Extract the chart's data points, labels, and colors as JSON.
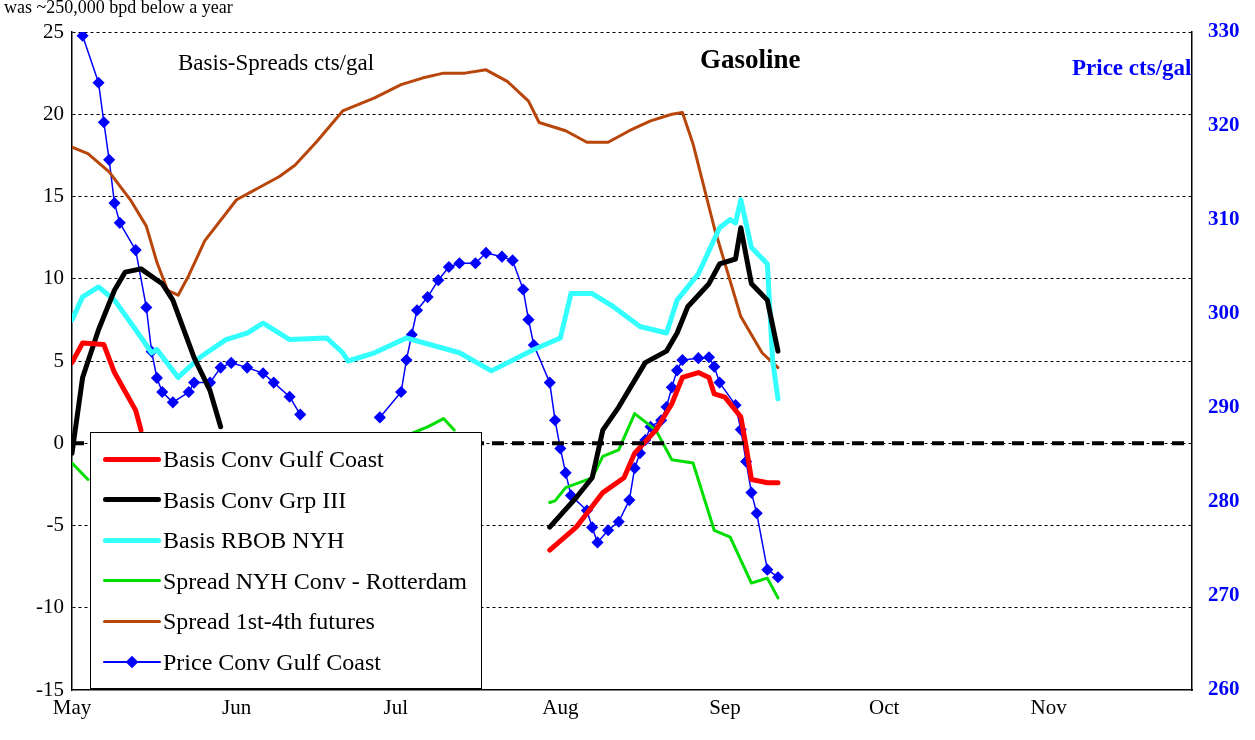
{
  "chart_data": {
    "type": "line",
    "title": "Gasoline",
    "ylabel": "Basis-Spreads cts/gal",
    "y2label": "Price cts/gal",
    "annotations": [
      "was ~250,000 bpd below a year"
    ],
    "xlim": [
      "--05-01",
      "--11-28"
    ],
    "xticks": [
      {
        "value": "--05-01",
        "label": "May"
      },
      {
        "value": "--06-01",
        "label": "Jun"
      },
      {
        "value": "--07-01",
        "label": "Jul"
      },
      {
        "value": "--08-01",
        "label": "Aug"
      },
      {
        "value": "--09-01",
        "label": "Sep"
      },
      {
        "value": "--10-01",
        "label": "Oct"
      },
      {
        "value": "--11-01",
        "label": "Nov"
      }
    ],
    "ylim": [
      -15,
      25
    ],
    "yticks": [
      -15,
      -10,
      -5,
      0,
      5,
      10,
      15,
      20,
      25
    ],
    "y2lim": [
      260,
      330
    ],
    "y2ticks": [
      260,
      270,
      280,
      290,
      300,
      310,
      320,
      330
    ],
    "grid": "y",
    "legend": "bottom left",
    "ref_lines": [
      {
        "axis": "y",
        "value": 0,
        "color": "#000000",
        "line_style": "dashed"
      }
    ],
    "series": [
      {
        "name": "Basis Conv Gulf Coast",
        "color": "#ff0000",
        "marker": "none",
        "x": [
          "--05-01",
          "--05-03",
          "--05-07",
          "--05-09",
          "--05-13",
          "--05-14",
          "--06-20",
          "--07-30",
          "--08-04",
          "--08-09",
          "--08-13",
          "--08-15",
          "--08-19",
          "--08-22",
          "--08-24",
          "--08-27",
          "--08-29",
          "--08-30",
          "--09-01",
          "--09-04",
          "--09-05",
          "--09-06",
          "--09-09",
          "--09-11"
        ],
        "values": [
          4.9,
          6.1,
          6.0,
          4.3,
          2.0,
          0.8,
          null,
          -6.5,
          -5.1,
          -3.0,
          -2.1,
          -0.6,
          0.8,
          2.4,
          4.0,
          4.3,
          4.0,
          3.0,
          2.8,
          1.6,
          -0.2,
          -2.2,
          -2.4,
          -2.4
        ]
      },
      {
        "name": "Basis Conv Grp III",
        "color": "#000000",
        "marker": "none",
        "x": [
          "--05-01",
          "--05-03",
          "--05-06",
          "--05-09",
          "--05-11",
          "--05-14",
          "--05-18",
          "--05-20",
          "--05-24",
          "--05-27",
          "--05-29",
          "--05-30",
          "--06-20",
          "--07-30",
          "--08-04",
          "--08-07",
          "--08-09",
          "--08-12",
          "--08-17",
          "--08-21",
          "--08-23",
          "--08-25",
          "--08-29",
          "--08-31",
          "--09-03",
          "--09-04",
          "--09-06",
          "--09-09",
          "--09-11"
        ],
        "values": [
          -0.6,
          4.0,
          6.9,
          9.3,
          10.4,
          10.6,
          9.7,
          8.7,
          5.2,
          3.2,
          1.0,
          null,
          null,
          -5.1,
          -3.3,
          -2.1,
          0.8,
          2.2,
          4.9,
          5.6,
          6.7,
          8.3,
          9.7,
          10.9,
          11.2,
          13.1,
          9.7,
          8.7,
          5.6
        ]
      },
      {
        "name": "Basis RBOB NYH",
        "color": "#33ffff",
        "marker": "none",
        "x": [
          "--05-01",
          "--05-03",
          "--05-06",
          "--05-09",
          "--05-13",
          "--05-16",
          "--05-17",
          "--05-21",
          "--05-25",
          "--05-30",
          "--06-03",
          "--06-06",
          "--06-11",
          "--06-18",
          "--06-21",
          "--06-22",
          "--06-27",
          "--07-03",
          "--07-13",
          "--07-19",
          "--07-27",
          "--08-01",
          "--08-03",
          "--08-07",
          "--08-11",
          "--08-16",
          "--08-21",
          "--08-23",
          "--08-27",
          "--08-31",
          "--09-02",
          "--09-03",
          "--09-04",
          "--09-06",
          "--09-09",
          "--09-10",
          "--09-11"
        ],
        "values": [
          7.5,
          8.9,
          9.5,
          8.7,
          6.9,
          5.5,
          5.7,
          4.0,
          5.2,
          6.3,
          6.7,
          7.3,
          6.3,
          6.4,
          5.5,
          5.0,
          5.5,
          6.4,
          5.5,
          4.4,
          5.7,
          6.4,
          9.1,
          9.1,
          8.3,
          7.1,
          6.7,
          8.7,
          10.3,
          13.1,
          13.6,
          13.4,
          14.8,
          11.9,
          10.9,
          5.0,
          2.7
        ]
      },
      {
        "name": "Spread NYH Conv - Rotterdam",
        "color": "#00dd00",
        "marker": "none",
        "x": [
          "--05-01",
          "--05-04",
          "--06-20",
          "--07-04",
          "--07-07",
          "--07-10",
          "--07-12",
          "--07-20",
          "--07-30",
          "--07-31",
          "--08-02",
          "--08-07",
          "--08-09",
          "--08-12",
          "--08-15",
          "--08-19",
          "--08-22",
          "--08-26",
          "--08-30",
          "--09-02",
          "--09-06",
          "--09-09",
          "--09-11"
        ],
        "values": [
          -1.2,
          -2.2,
          null,
          0.6,
          1.0,
          1.5,
          0.8,
          null,
          -3.6,
          -3.5,
          -2.7,
          -2.1,
          -0.8,
          -0.4,
          1.8,
          0.8,
          -1.0,
          -1.2,
          -5.3,
          -5.7,
          -8.5,
          -8.2,
          -9.4
        ]
      },
      {
        "name": "Spread 1st-4th futures",
        "color": "#b8460b",
        "marker": "none",
        "x": [
          "--05-01",
          "--05-04",
          "--05-08",
          "--05-12",
          "--05-15",
          "--05-17",
          "--05-19",
          "--05-21",
          "--05-23",
          "--05-26",
          "--06-01",
          "--06-05",
          "--06-09",
          "--06-12",
          "--06-16",
          "--06-21",
          "--06-27",
          "--07-02",
          "--07-06",
          "--07-10",
          "--07-14",
          "--07-18",
          "--07-22",
          "--07-26",
          "--07-28",
          "--08-02",
          "--08-06",
          "--08-10",
          "--08-14",
          "--08-18",
          "--08-22",
          "--08-24",
          "--08-26",
          "--08-30",
          "--09-04",
          "--09-08",
          "--09-11"
        ],
        "values": [
          18.0,
          17.6,
          16.5,
          14.8,
          13.2,
          11.0,
          9.3,
          9.0,
          10.2,
          12.3,
          14.8,
          15.5,
          16.2,
          16.9,
          18.3,
          20.2,
          21.0,
          21.8,
          22.2,
          22.5,
          22.5,
          22.7,
          22.0,
          20.8,
          19.5,
          19.0,
          18.3,
          18.3,
          19.0,
          19.6,
          20.0,
          20.1,
          18.2,
          13.1,
          7.7,
          5.5,
          4.6
        ]
      },
      {
        "name": "Price Conv Gulf Coast",
        "color": "#0000ff",
        "marker": "diamond",
        "axis": "y2",
        "x": [
          "--05-03",
          "--05-06",
          "--05-07",
          "--05-08",
          "--05-09",
          "--05-10",
          "--05-13",
          "--05-15",
          "--05-16",
          "--05-17",
          "--05-18",
          "--05-20",
          "--05-23",
          "--05-24",
          "--05-27",
          "--05-29",
          "--05-31",
          "--06-03",
          "--06-06",
          "--06-08",
          "--06-11",
          "--06-13",
          "--06-20",
          "--06-28",
          "--07-02",
          "--07-03",
          "--07-04",
          "--07-05",
          "--07-07",
          "--07-09",
          "--07-11",
          "--07-13",
          "--07-16",
          "--07-18",
          "--07-21",
          "--07-23",
          "--07-25",
          "--07-26",
          "--07-27",
          "--07-30",
          "--07-31",
          "--08-01",
          "--08-02",
          "--08-03",
          "--08-06",
          "--08-07",
          "--08-08",
          "--08-10",
          "--08-12",
          "--08-14",
          "--08-15",
          "--08-16",
          "--08-17",
          "--08-18",
          "--08-20",
          "--08-21",
          "--08-22",
          "--08-23",
          "--08-24",
          "--08-27",
          "--08-29",
          "--08-30",
          "--08-31",
          "--09-03",
          "--09-04",
          "--09-05",
          "--09-06",
          "--09-07",
          "--09-09",
          "--09-11"
        ],
        "values": [
          329.6,
          324.6,
          320.4,
          316.4,
          311.8,
          309.7,
          306.8,
          300.7,
          296.0,
          293.2,
          291.7,
          290.6,
          291.7,
          292.7,
          292.7,
          294.3,
          294.8,
          294.3,
          293.7,
          292.7,
          291.2,
          289.3,
          null,
          289.0,
          291.7,
          295.1,
          297.8,
          300.4,
          301.8,
          303.6,
          305.0,
          305.4,
          305.4,
          306.5,
          306.1,
          305.7,
          302.6,
          299.4,
          296.7,
          292.7,
          288.7,
          285.7,
          283.1,
          280.7,
          279.1,
          277.3,
          275.7,
          277.0,
          277.9,
          280.2,
          283.6,
          285.2,
          286.6,
          288.0,
          288.7,
          290.1,
          292.2,
          294.0,
          295.1,
          295.3,
          295.4,
          294.4,
          292.7,
          290.3,
          287.7,
          284.3,
          281.0,
          278.8,
          272.8,
          272.0
        ]
      }
    ]
  }
}
